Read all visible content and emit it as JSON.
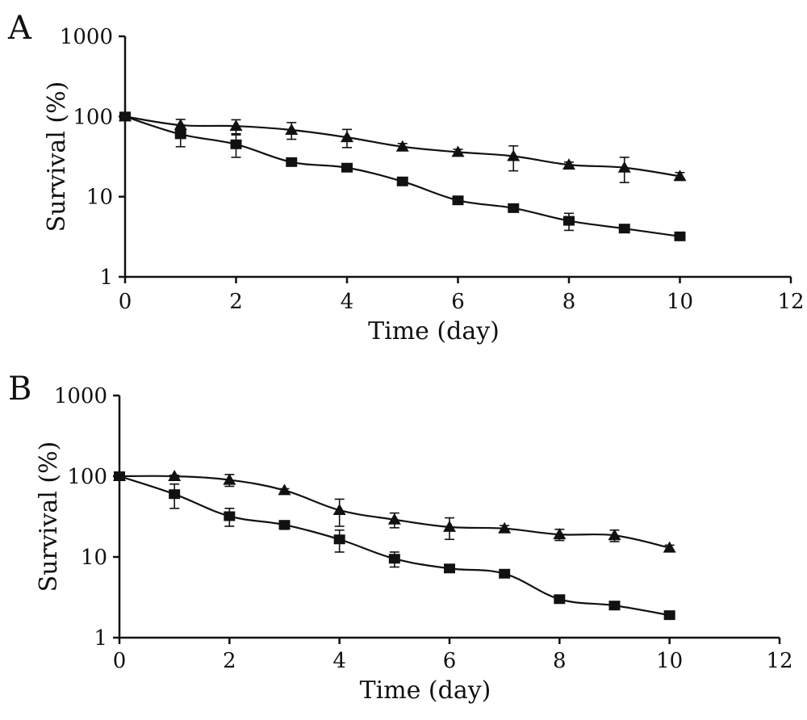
{
  "chart_data": [
    {
      "panel_label": "A",
      "type": "line",
      "xlabel": "Time (day)",
      "ylabel": "Survival (%)",
      "xlim": [
        0,
        12
      ],
      "ylim": [
        1,
        1000
      ],
      "y_scale": "log",
      "x_ticks": [
        "0",
        "2",
        "4",
        "6",
        "8",
        "10",
        "12"
      ],
      "y_ticks": [
        "1",
        "10",
        "100",
        "1000"
      ],
      "grid": false,
      "series": [
        {
          "marker": "triangle",
          "x": [
            0,
            1,
            2,
            3,
            4,
            5,
            6,
            7,
            8,
            9,
            10
          ],
          "y": [
            100,
            78,
            76,
            68,
            55,
            42,
            36,
            32,
            25,
            23,
            18
          ],
          "err": [
            6,
            14,
            15,
            16,
            14,
            4,
            3,
            11,
            2,
            8,
            2
          ]
        },
        {
          "marker": "square",
          "x": [
            0,
            1,
            2,
            3,
            4,
            5,
            6,
            7,
            8,
            9,
            10
          ],
          "y": [
            100,
            60,
            45,
            27,
            23,
            15.5,
            9,
            7.2,
            5,
            4,
            3.2
          ],
          "err": [
            6,
            18,
            14,
            2,
            2,
            1,
            0.6,
            0.5,
            1.2,
            0.3,
            0.3
          ]
        }
      ]
    },
    {
      "panel_label": "B",
      "type": "line",
      "xlabel": "Time (day)",
      "ylabel": "Survival (%)",
      "xlim": [
        0,
        12
      ],
      "ylim": [
        1,
        1000
      ],
      "y_scale": "log",
      "x_ticks": [
        "0",
        "2",
        "4",
        "6",
        "8",
        "10",
        "12"
      ],
      "y_ticks": [
        "1",
        "10",
        "100",
        "1000"
      ],
      "grid": false,
      "series": [
        {
          "marker": "triangle",
          "x": [
            0,
            1,
            2,
            3,
            4,
            5,
            6,
            7,
            8,
            9,
            10
          ],
          "y": [
            100,
            100,
            90,
            67,
            38,
            29,
            23.5,
            22.5,
            19,
            18.5,
            13
          ],
          "err": [
            3,
            3,
            15,
            3,
            14,
            6,
            7,
            2,
            3,
            3,
            1
          ]
        },
        {
          "marker": "square",
          "x": [
            0,
            1,
            2,
            3,
            4,
            5,
            6,
            7,
            8,
            9,
            10
          ],
          "y": [
            100,
            60,
            32,
            25,
            16.5,
            9.5,
            7.2,
            6.2,
            3,
            2.5,
            1.9
          ],
          "err": [
            3,
            20,
            8,
            3,
            5,
            2,
            0.4,
            0.3,
            0.3,
            0.2,
            0.1
          ]
        }
      ]
    }
  ]
}
